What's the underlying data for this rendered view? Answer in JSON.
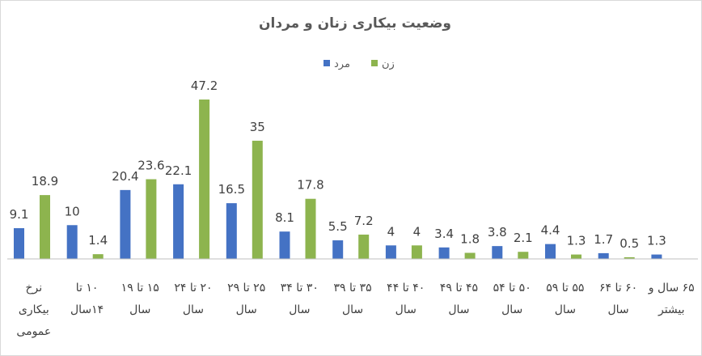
{
  "chart_data": {
    "type": "bar",
    "title": "وضعیت بیکاری زنان و مردان",
    "xlabel": "",
    "ylabel": "",
    "ylim": [
      0,
      50
    ],
    "grid": false,
    "legend_position": "top",
    "categories": [
      [
        "نرخ",
        "بیکاری",
        "عمومی"
      ],
      [
        "۱۰ تا",
        "۱۴سال"
      ],
      [
        "۱۵ تا ۱۹",
        "سال"
      ],
      [
        "۲۰ تا ۲۴",
        "سال"
      ],
      [
        "۲۵ تا ۲۹",
        "سال"
      ],
      [
        "۳۰ تا ۳۴",
        "سال"
      ],
      [
        "۳۵ تا ۳۹",
        "سال"
      ],
      [
        "۴۰ تا ۴۴",
        "سال"
      ],
      [
        "۴۵ تا ۴۹",
        "سال"
      ],
      [
        "۵۰ تا ۵۴",
        "سال"
      ],
      [
        "۵۵ تا ۵۹",
        "سال"
      ],
      [
        "۶۰ تا ۶۴",
        "سال"
      ],
      [
        "۶۵ سال و",
        "بیشتر"
      ]
    ],
    "series": [
      {
        "name": "مرد",
        "color": "#4472C4",
        "values": [
          9.1,
          10,
          20.4,
          22.1,
          16.5,
          8.1,
          5.5,
          4,
          3.4,
          3.8,
          4.4,
          1.7,
          1.3
        ]
      },
      {
        "name": "زن",
        "color": "#8DB44E",
        "values": [
          18.9,
          1.4,
          23.6,
          47.2,
          35,
          17.8,
          7.2,
          4,
          1.8,
          2.1,
          1.3,
          0.5,
          null
        ]
      }
    ]
  }
}
